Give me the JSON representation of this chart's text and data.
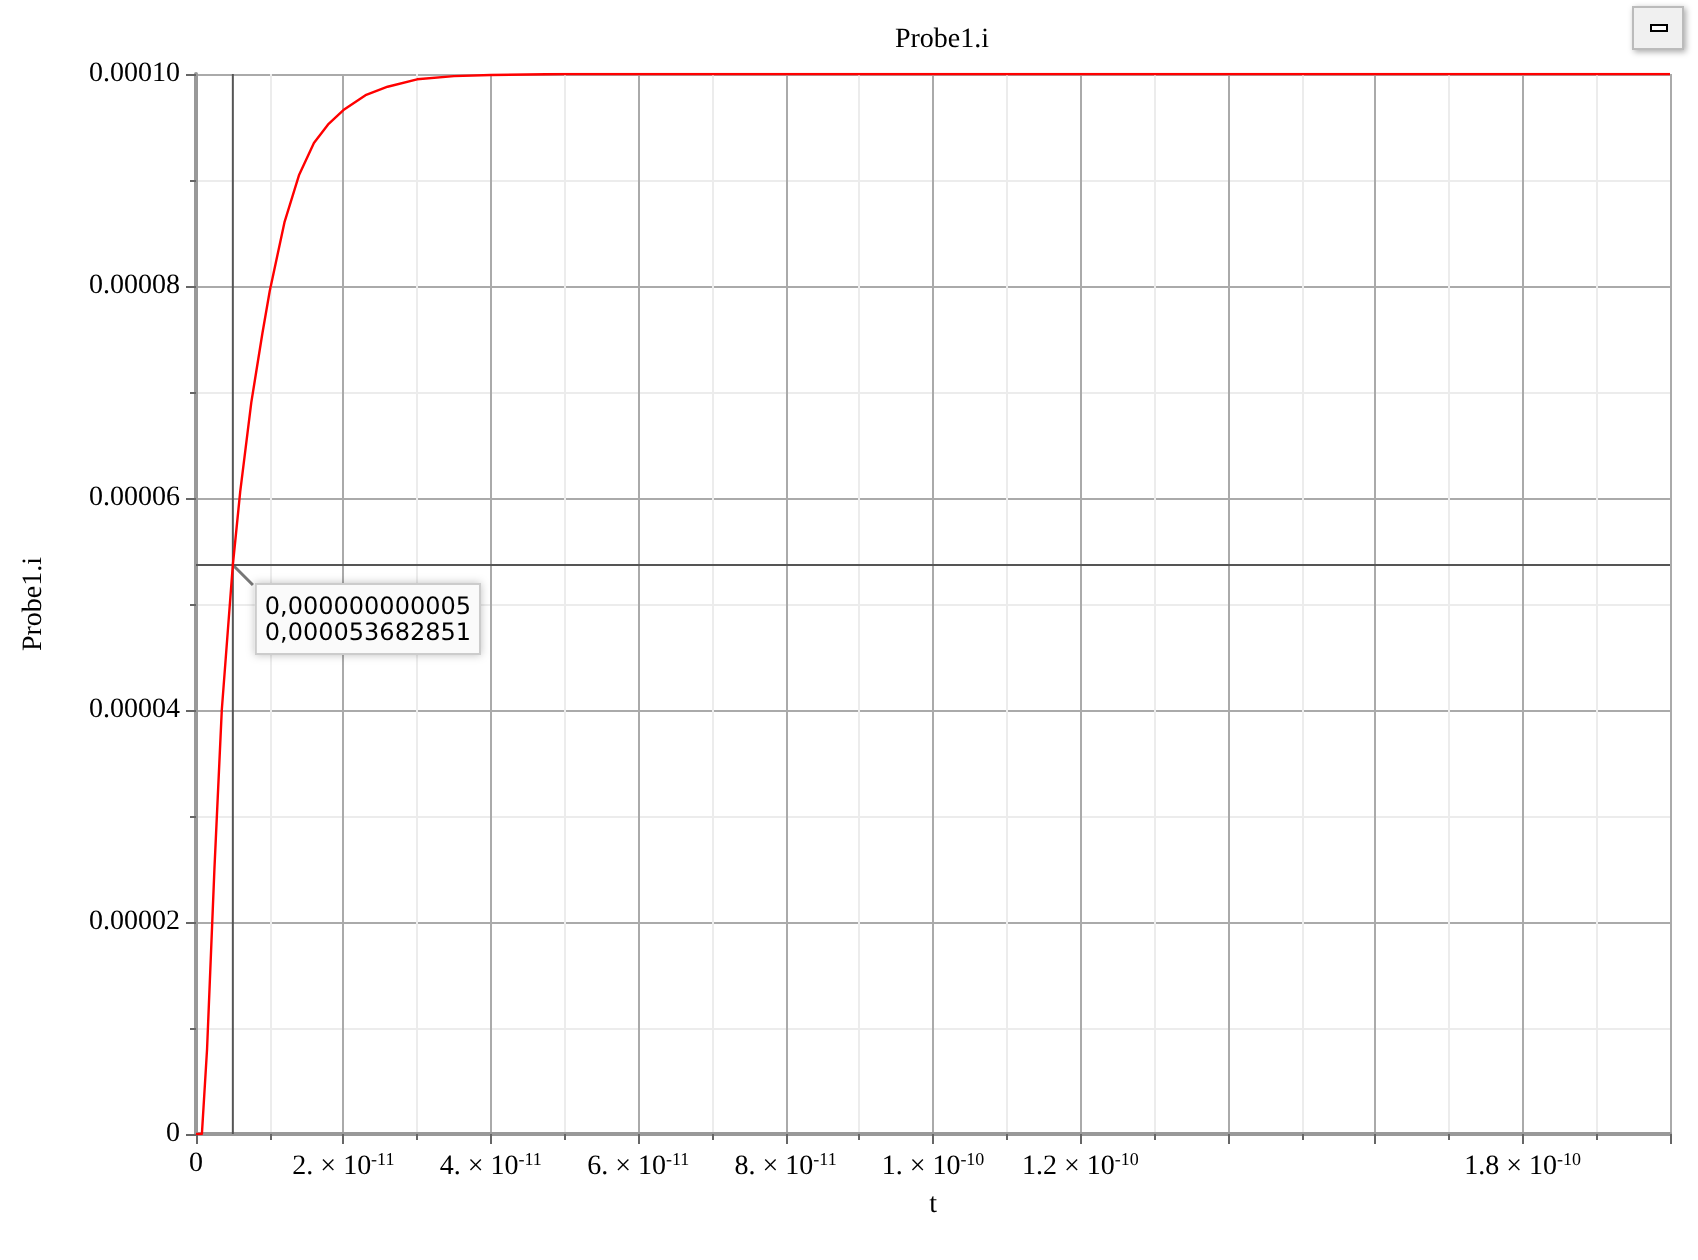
{
  "chart_data": {
    "type": "line",
    "title": "Probe1.i",
    "xlabel": "t",
    "ylabel": "Probe1.i",
    "series": [
      {
        "color": "#ff0000",
        "x": [
          0,
          8e-13,
          1.5e-12,
          2.5e-12,
          3.5e-12,
          5e-12,
          6e-12,
          7.5e-12,
          9e-12,
          1e-11,
          1.2e-11,
          1.4e-11,
          1.6e-11,
          1.8e-11,
          2e-11,
          2.3e-11,
          2.6e-11,
          3e-11,
          3.5e-11,
          4e-11,
          5e-11,
          6e-11,
          1e-10,
          1.5e-10,
          2e-10
        ],
        "values": [
          0,
          0,
          8e-06,
          2.5e-05,
          4e-05,
          5.37e-05,
          6.06e-05,
          6.9e-05,
          7.55e-05,
          7.95e-05,
          8.6e-05,
          9.05e-05,
          9.35e-05,
          9.53e-05,
          9.66e-05,
          9.8e-05,
          9.88e-05,
          9.95e-05,
          9.98e-05,
          9.99e-05,
          0.0001,
          0.0001,
          0.0001,
          0.0001,
          0.0001
        ]
      }
    ],
    "xlim": [
      0,
      2e-10
    ],
    "ylim": [
      0,
      0.0001
    ],
    "xticks": [
      0,
      {
        "value": 2e-11,
        "label": "2. × 10$^{-11}$"
      },
      {
        "value": 4e-11,
        "label": "4. × 10$^{-11}$"
      },
      {
        "value": 6e-11,
        "label": "6. × 10$^{-11}$"
      },
      {
        "value": 8e-11,
        "label": "8. × 10$^{-11}$"
      },
      {
        "value": 1e-10,
        "label": "1. × 10$^{-10}$"
      },
      {
        "value": 1.2e-10,
        "label": "1.2 × 10$^{-10}$"
      },
      {
        "value": 1.4e-10,
        "label": null
      },
      {
        "value": 1.6e-10,
        "label": null
      },
      {
        "value": 1.8e-10,
        "label": "1.8 × 10$^{-10}$"
      }
    ],
    "yticks": [
      0,
      {
        "value": 2e-05,
        "label": "0.00002"
      },
      {
        "value": 4e-05,
        "label": "0.00004"
      },
      {
        "value": 6e-05,
        "label": "0.00006"
      },
      {
        "value": 8e-05,
        "label": "0.00008"
      },
      {
        "value": 0.0001,
        "label": "0.00010"
      }
    ],
    "ref_lines": [
      {
        "axis": "x",
        "value": 5e-12,
        "color": "#555555"
      },
      {
        "axis": "y",
        "value": 5.3682851e-05,
        "color": "#555555"
      }
    ],
    "annotations": [
      {
        "text": "0,000000000005\n0,000053682851",
        "x": 5e-12,
        "y": 5.3682851e-05
      }
    ],
    "grid": true,
    "marker": "none",
    "line_style": "solid"
  }
}
